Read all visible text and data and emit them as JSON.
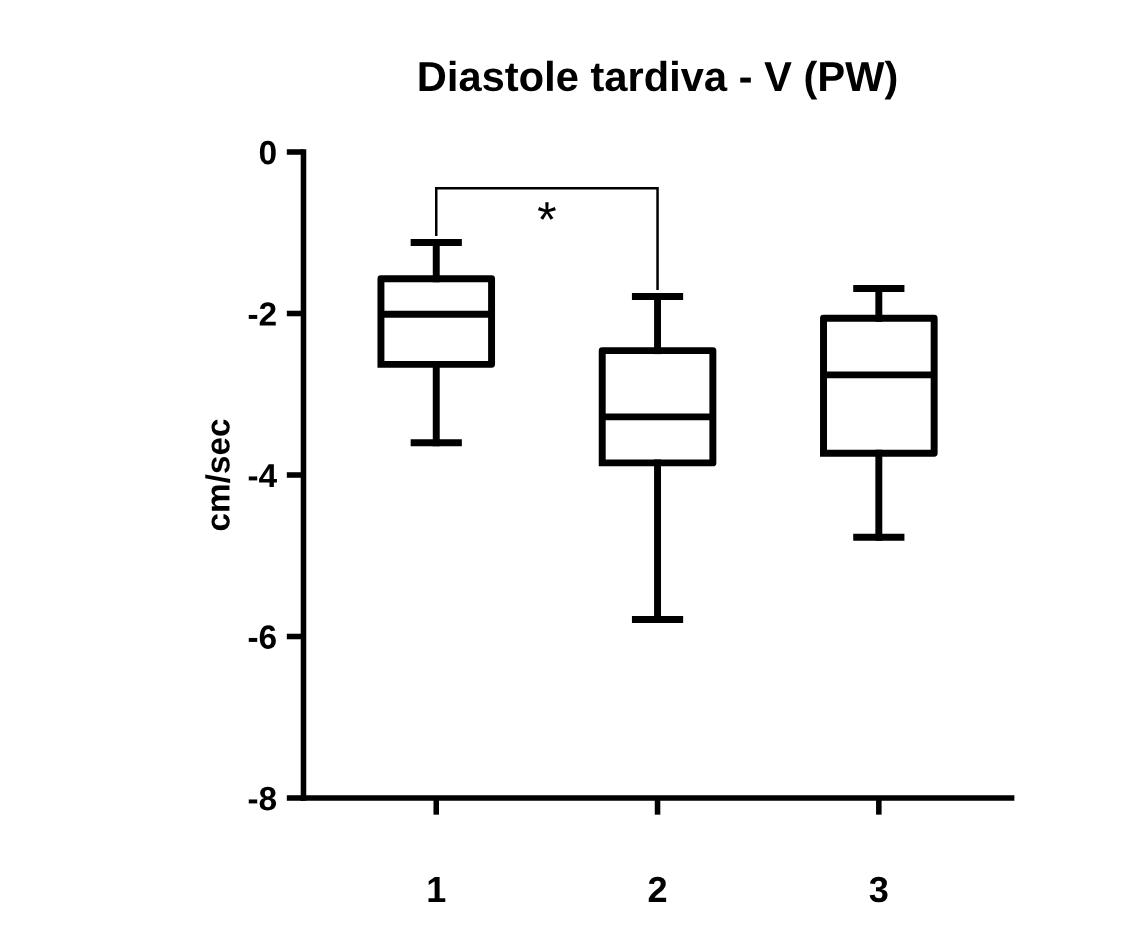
{
  "chart_data": {
    "type": "box",
    "title": "Diastole tardiva - V (PW)",
    "ylabel": "cm/sec",
    "categories": [
      "1",
      "2",
      "3"
    ],
    "boxes": [
      {
        "low": -3.6,
        "q1": -2.63,
        "median": -2.01,
        "q3": -1.57,
        "high": -1.12
      },
      {
        "low": -5.79,
        "q1": -3.85,
        "median": -3.28,
        "q3": -2.46,
        "high": -1.79
      },
      {
        "low": -4.77,
        "q1": -3.73,
        "median": -2.76,
        "q3": -2.06,
        "high": -1.69
      }
    ],
    "ylim": [
      -8,
      0
    ],
    "yticks": [
      -8,
      -6,
      -4,
      -2,
      0
    ],
    "grid": false,
    "annotations": [
      "*"
    ]
  }
}
